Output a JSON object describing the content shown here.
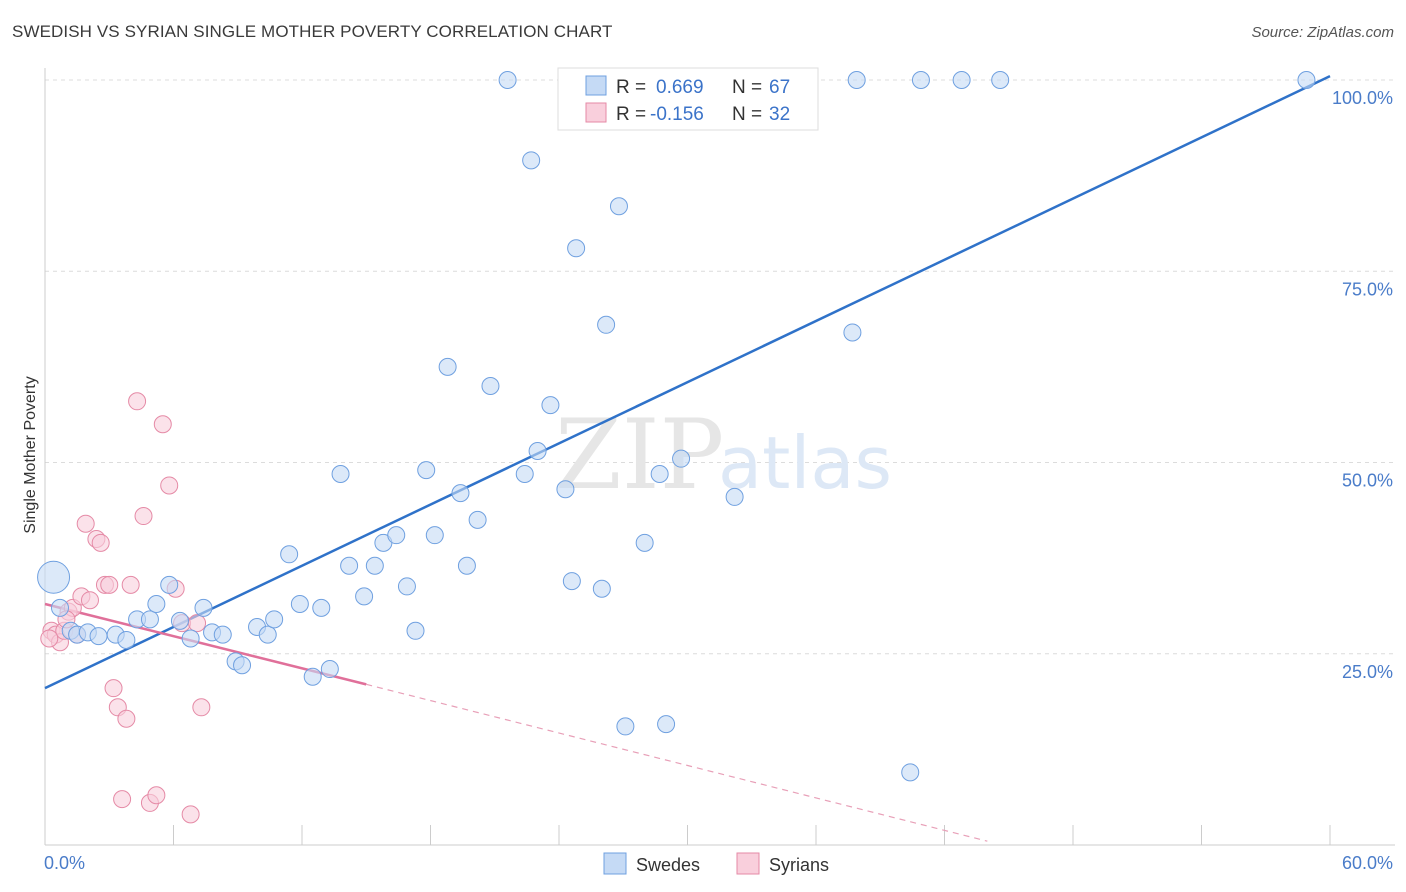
{
  "title": "SWEDISH VS SYRIAN SINGLE MOTHER POVERTY CORRELATION CHART",
  "source": "Source: ZipAtlas.com",
  "watermark": {
    "zip": "ZIP",
    "atlas": "atlas"
  },
  "legend": {
    "rows": [
      {
        "r_label": "R =",
        "r_value": "0.669",
        "n_label": "N =",
        "n_value": "67",
        "color": "#a8c8f0"
      },
      {
        "r_label": "R =",
        "r_value": "-0.156",
        "n_label": "N =",
        "n_value": "32",
        "color": "#f7b8cb"
      }
    ]
  },
  "bottom_legend": [
    {
      "label": "Swedes",
      "color": "#a8c8f0"
    },
    {
      "label": "Syrians",
      "color": "#f7b8cb"
    }
  ],
  "chart_data": {
    "type": "scatter",
    "title": "SWEDISH VS SYRIAN SINGLE MOTHER POVERTY CORRELATION CHART",
    "xlabel": "",
    "ylabel": "Single Mother Poverty",
    "xlim": [
      0,
      60
    ],
    "ylim": [
      0,
      100
    ],
    "x_tick_labels": [
      "0.0%",
      "60.0%"
    ],
    "y_tick_labels": [
      "25.0%",
      "50.0%",
      "75.0%",
      "100.0%"
    ],
    "y_ticks": [
      25,
      50,
      75,
      100
    ],
    "grid": true,
    "legend_position": "top-center",
    "series": [
      {
        "name": "Swedes",
        "color": "#6fa0e0",
        "fill": "#c5daf5",
        "points": [
          [
            0.4,
            35.0,
            "large"
          ],
          [
            0.7,
            31.0
          ],
          [
            1.2,
            28.0
          ],
          [
            1.5,
            27.5
          ],
          [
            2.0,
            27.8
          ],
          [
            2.5,
            27.3
          ],
          [
            3.3,
            27.5
          ],
          [
            3.8,
            26.8
          ],
          [
            4.3,
            29.5
          ],
          [
            4.9,
            29.5
          ],
          [
            5.2,
            31.5
          ],
          [
            5.8,
            34.0
          ],
          [
            6.3,
            29.3
          ],
          [
            6.8,
            27.0
          ],
          [
            7.4,
            31.0
          ],
          [
            7.8,
            27.8
          ],
          [
            8.3,
            27.5
          ],
          [
            8.9,
            24.0
          ],
          [
            9.2,
            23.5
          ],
          [
            9.9,
            28.5
          ],
          [
            10.4,
            27.5
          ],
          [
            10.7,
            29.5
          ],
          [
            11.4,
            38.0
          ],
          [
            11.9,
            31.5
          ],
          [
            12.5,
            22.0
          ],
          [
            12.9,
            31.0
          ],
          [
            13.3,
            23.0
          ],
          [
            13.8,
            48.5
          ],
          [
            14.2,
            36.5
          ],
          [
            14.9,
            32.5
          ],
          [
            15.4,
            36.5
          ],
          [
            15.8,
            39.5
          ],
          [
            16.4,
            40.5
          ],
          [
            16.9,
            33.8
          ],
          [
            17.3,
            28.0
          ],
          [
            17.8,
            49.0
          ],
          [
            18.2,
            40.5
          ],
          [
            18.8,
            62.5
          ],
          [
            19.4,
            46.0
          ],
          [
            19.7,
            36.5
          ],
          [
            20.2,
            42.5
          ],
          [
            20.8,
            60.0
          ],
          [
            21.6,
            100.0
          ],
          [
            22.4,
            48.5
          ],
          [
            22.7,
            89.5
          ],
          [
            23.0,
            51.5
          ],
          [
            23.6,
            57.5
          ],
          [
            24.3,
            46.5
          ],
          [
            24.6,
            34.5
          ],
          [
            24.8,
            78.0
          ],
          [
            26.0,
            33.5
          ],
          [
            26.2,
            68.0
          ],
          [
            26.8,
            83.5
          ],
          [
            27.1,
            15.5
          ],
          [
            28.0,
            39.5
          ],
          [
            28.7,
            48.5
          ],
          [
            29.0,
            15.8
          ],
          [
            29.7,
            50.5
          ],
          [
            31.1,
            100.0
          ],
          [
            32.2,
            45.5
          ],
          [
            37.7,
            67.0
          ],
          [
            37.9,
            100.0
          ],
          [
            40.4,
            9.5
          ],
          [
            40.9,
            100.0
          ],
          [
            42.8,
            100.0
          ],
          [
            44.6,
            100.0
          ],
          [
            58.9,
            100.0
          ]
        ],
        "trend": {
          "x": [
            0,
            60
          ],
          "y": [
            20.5,
            100.5
          ]
        }
      },
      {
        "name": "Syrians",
        "color": "#e58aa6",
        "fill": "#f9cfdc",
        "points": [
          [
            0.3,
            28.0
          ],
          [
            0.5,
            27.5
          ],
          [
            0.7,
            26.5
          ],
          [
            0.9,
            28.0
          ],
          [
            1.1,
            30.5
          ],
          [
            1.3,
            31.0
          ],
          [
            1.5,
            27.5
          ],
          [
            1.7,
            32.5
          ],
          [
            1.9,
            42.0
          ],
          [
            2.1,
            32.0
          ],
          [
            2.4,
            40.0
          ],
          [
            2.6,
            39.5
          ],
          [
            2.8,
            34.0
          ],
          [
            3.0,
            34.0
          ],
          [
            3.2,
            20.5
          ],
          [
            3.4,
            18.0
          ],
          [
            3.6,
            6.0
          ],
          [
            3.8,
            16.5
          ],
          [
            4.0,
            34.0
          ],
          [
            4.3,
            58.0
          ],
          [
            4.6,
            43.0
          ],
          [
            4.9,
            5.5
          ],
          [
            5.2,
            6.5
          ],
          [
            5.5,
            55.0
          ],
          [
            5.8,
            47.0
          ],
          [
            6.1,
            33.5
          ],
          [
            6.4,
            29.0
          ],
          [
            6.8,
            4.0
          ],
          [
            7.1,
            29.0
          ],
          [
            7.3,
            18.0
          ],
          [
            0.2,
            27.0
          ],
          [
            1.0,
            29.5
          ]
        ],
        "trend_solid": {
          "x": [
            0,
            15
          ],
          "y": [
            31.5,
            21.0
          ]
        },
        "trend_dashed": {
          "x": [
            15,
            44
          ],
          "y": [
            21.0,
            0.5
          ]
        }
      }
    ]
  }
}
